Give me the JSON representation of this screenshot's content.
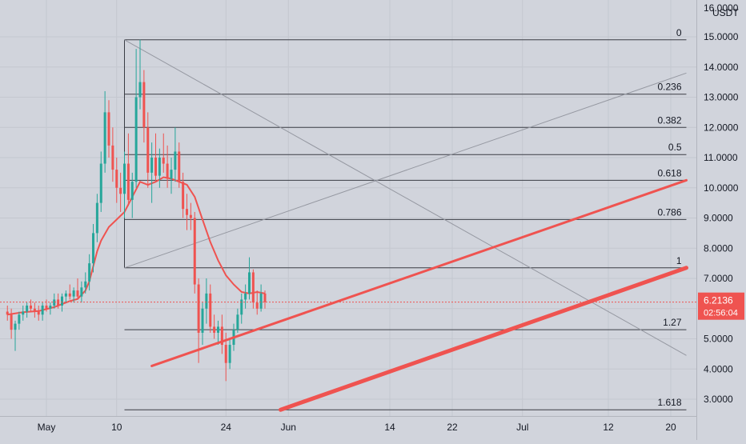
{
  "chart_data": {
    "type": "candlestick",
    "currency": "USDT",
    "price_axis": {
      "ticks": [
        "3.0000",
        "4.0000",
        "5.0000",
        "6.0000",
        "7.0000",
        "8.0000",
        "9.0000",
        "10.0000",
        "11.0000",
        "12.0000",
        "13.0000",
        "14.0000",
        "15.0000"
      ],
      "top_partial": "16.0000"
    },
    "time_axis": {
      "ticks": [
        {
          "label": "May",
          "day": 1
        },
        {
          "label": "10",
          "day": 10
        },
        {
          "label": "24",
          "day": 24
        },
        {
          "label": "Jun",
          "day": 32
        },
        {
          "label": "14",
          "day": 45
        },
        {
          "label": "22",
          "day": 53
        },
        {
          "label": "Jul",
          "day": 62
        },
        {
          "label": "12",
          "day": 73
        },
        {
          "label": "20",
          "day": 81
        }
      ]
    },
    "last_price": {
      "value": "6.2136",
      "countdown": "02:56:04",
      "y": 6.2136
    },
    "fibonacci": [
      {
        "level": "0",
        "price": 14.9
      },
      {
        "level": "0.236",
        "price": 13.1
      },
      {
        "level": "0.382",
        "price": 12.0
      },
      {
        "level": "0.5",
        "price": 11.1
      },
      {
        "level": "0.618",
        "price": 10.25
      },
      {
        "level": "0.786",
        "price": 8.95
      },
      {
        "level": "1",
        "price": 7.35
      },
      {
        "level": "1.27",
        "price": 5.3
      },
      {
        "level": "1.618",
        "price": 2.65
      }
    ],
    "fib_anchor": {
      "start_day": 11,
      "end_day": 83
    },
    "trendlines": [
      {
        "name": "upper",
        "from": {
          "day": 14.5,
          "price": 4.1
        },
        "to": {
          "day": 83,
          "price": 10.25
        }
      },
      {
        "name": "lower",
        "from": {
          "day": 31,
          "price": 2.65
        },
        "to": {
          "day": 83,
          "price": 7.35
        }
      }
    ],
    "diagonals": [
      {
        "from": {
          "day": 11,
          "price": 14.9
        },
        "to": {
          "day": 83,
          "price": 4.45
        }
      },
      {
        "from": {
          "day": 11,
          "price": 7.35
        },
        "to": {
          "day": 83,
          "price": 13.8
        }
      }
    ],
    "candles": [
      [
        -4,
        5.9,
        6.1,
        5.6,
        5.8
      ],
      [
        -3.5,
        5.8,
        6.0,
        5.0,
        5.3
      ],
      [
        -3,
        5.3,
        5.6,
        4.6,
        5.5
      ],
      [
        -2.5,
        5.5,
        5.9,
        5.3,
        5.8
      ],
      [
        -2,
        5.8,
        6.1,
        5.6,
        5.9
      ],
      [
        -1.5,
        5.9,
        6.2,
        5.7,
        6.1
      ],
      [
        -1,
        6.1,
        6.3,
        5.9,
        6.0
      ],
      [
        -0.5,
        6.0,
        6.2,
        5.7,
        5.9
      ],
      [
        0,
        5.9,
        6.1,
        5.6,
        5.8
      ],
      [
        0.5,
        5.8,
        6.2,
        5.6,
        6.1
      ],
      [
        1,
        6.1,
        6.3,
        5.9,
        6.0
      ],
      [
        1.5,
        6.0,
        6.2,
        5.8,
        6.1
      ],
      [
        2,
        6.1,
        6.5,
        6.0,
        6.3
      ],
      [
        2.5,
        6.3,
        6.5,
        6.0,
        6.1
      ],
      [
        3,
        6.1,
        6.5,
        5.9,
        6.4
      ],
      [
        3.5,
        6.4,
        6.6,
        6.2,
        6.5
      ],
      [
        4,
        6.5,
        6.8,
        6.3,
        6.4
      ],
      [
        4.5,
        6.4,
        6.7,
        6.2,
        6.6
      ],
      [
        5,
        6.6,
        7.0,
        6.3,
        6.4
      ],
      [
        5.5,
        6.4,
        6.9,
        6.2,
        6.7
      ],
      [
        6,
        6.7,
        7.2,
        6.5,
        6.9
      ],
      [
        6.5,
        6.9,
        7.8,
        6.6,
        7.5
      ],
      [
        7,
        7.5,
        8.8,
        7.2,
        8.5
      ],
      [
        7.5,
        8.5,
        9.8,
        8.2,
        9.5
      ],
      [
        8,
        9.5,
        11.2,
        9.2,
        10.8
      ],
      [
        8.5,
        10.8,
        13.2,
        10.5,
        12.5
      ],
      [
        9,
        12.5,
        12.9,
        11.0,
        11.4
      ],
      [
        9.5,
        11.4,
        12.0,
        10.2,
        10.6
      ],
      [
        10,
        10.6,
        11.0,
        9.5,
        10.0
      ],
      [
        10.5,
        10.0,
        10.5,
        9.2,
        9.8
      ],
      [
        11,
        9.8,
        11.2,
        9.0,
        10.8
      ],
      [
        11.5,
        10.8,
        11.8,
        9.4,
        9.6
      ],
      [
        12,
        9.6,
        10.5,
        9.0,
        10.2
      ],
      [
        12.5,
        10.2,
        14.6,
        10.0,
        13.0
      ],
      [
        13,
        13.0,
        14.9,
        12.6,
        13.5
      ],
      [
        13.5,
        13.5,
        13.9,
        11.5,
        12.0
      ],
      [
        14,
        12.0,
        12.5,
        10.0,
        10.5
      ],
      [
        14.5,
        10.5,
        11.5,
        9.5,
        11.0
      ],
      [
        15,
        11.0,
        11.8,
        10.2,
        10.4
      ],
      [
        15.5,
        10.4,
        11.3,
        10.0,
        11.0
      ],
      [
        16,
        11.0,
        11.8,
        10.5,
        10.8
      ],
      [
        16.5,
        10.8,
        11.4,
        10.0,
        10.3
      ],
      [
        17,
        10.3,
        11.0,
        9.8,
        10.6
      ],
      [
        17.5,
        10.6,
        12.0,
        10.2,
        11.2
      ],
      [
        18,
        11.2,
        11.5,
        10.0,
        10.2
      ],
      [
        18.5,
        10.2,
        10.5,
        9.0,
        9.3
      ],
      [
        19,
        9.3,
        9.8,
        8.6,
        9.1
      ],
      [
        19.5,
        9.1,
        9.5,
        8.6,
        9.0
      ],
      [
        20,
        9.0,
        9.2,
        6.5,
        6.8
      ],
      [
        20.5,
        6.8,
        7.0,
        4.2,
        5.2
      ],
      [
        21,
        5.2,
        6.2,
        4.8,
        6.0
      ],
      [
        21.5,
        6.0,
        7.0,
        5.5,
        6.5
      ],
      [
        22,
        6.5,
        6.8,
        5.2,
        5.4
      ],
      [
        22.5,
        5.4,
        5.8,
        5.0,
        5.2
      ],
      [
        23,
        5.2,
        5.6,
        4.8,
        5.4
      ],
      [
        23.5,
        5.4,
        5.8,
        4.5,
        4.8
      ],
      [
        24,
        4.8,
        5.2,
        3.6,
        4.2
      ],
      [
        24.5,
        4.2,
        5.0,
        4.0,
        4.8
      ],
      [
        25,
        4.8,
        5.5,
        4.6,
        5.3
      ],
      [
        25.5,
        5.3,
        6.0,
        5.2,
        5.8
      ],
      [
        26,
        5.8,
        6.5,
        5.5,
        6.3
      ],
      [
        26.5,
        6.3,
        6.8,
        6.0,
        6.5
      ],
      [
        27,
        6.5,
        7.7,
        6.3,
        7.2
      ],
      [
        27.5,
        7.2,
        7.3,
        6.0,
        6.2
      ],
      [
        28,
        6.2,
        6.6,
        5.8,
        6.0
      ],
      [
        28.5,
        6.0,
        6.8,
        5.9,
        6.5
      ],
      [
        29,
        6.5,
        6.6,
        6.0,
        6.2136
      ]
    ],
    "moving_average": [
      [
        -4,
        5.8
      ],
      [
        -2,
        5.88
      ],
      [
        0,
        5.92
      ],
      [
        2,
        6.05
      ],
      [
        4,
        6.25
      ],
      [
        5,
        6.32
      ],
      [
        6,
        6.6
      ],
      [
        6.5,
        6.9
      ],
      [
        7,
        7.4
      ],
      [
        7.5,
        7.9
      ],
      [
        8,
        8.25
      ],
      [
        9,
        8.7
      ],
      [
        10,
        8.95
      ],
      [
        11,
        9.2
      ],
      [
        12,
        9.7
      ],
      [
        13,
        10.2
      ],
      [
        14,
        10.1
      ],
      [
        15,
        10.2
      ],
      [
        16,
        10.35
      ],
      [
        17,
        10.3
      ],
      [
        18,
        10.2
      ],
      [
        19,
        10.1
      ],
      [
        20,
        9.7
      ],
      [
        21,
        8.95
      ],
      [
        22,
        8.2
      ],
      [
        23,
        7.6
      ],
      [
        24,
        7.1
      ],
      [
        25,
        6.8
      ],
      [
        26,
        6.55
      ],
      [
        27,
        6.5
      ],
      [
        28,
        6.55
      ],
      [
        29,
        6.5
      ]
    ]
  }
}
